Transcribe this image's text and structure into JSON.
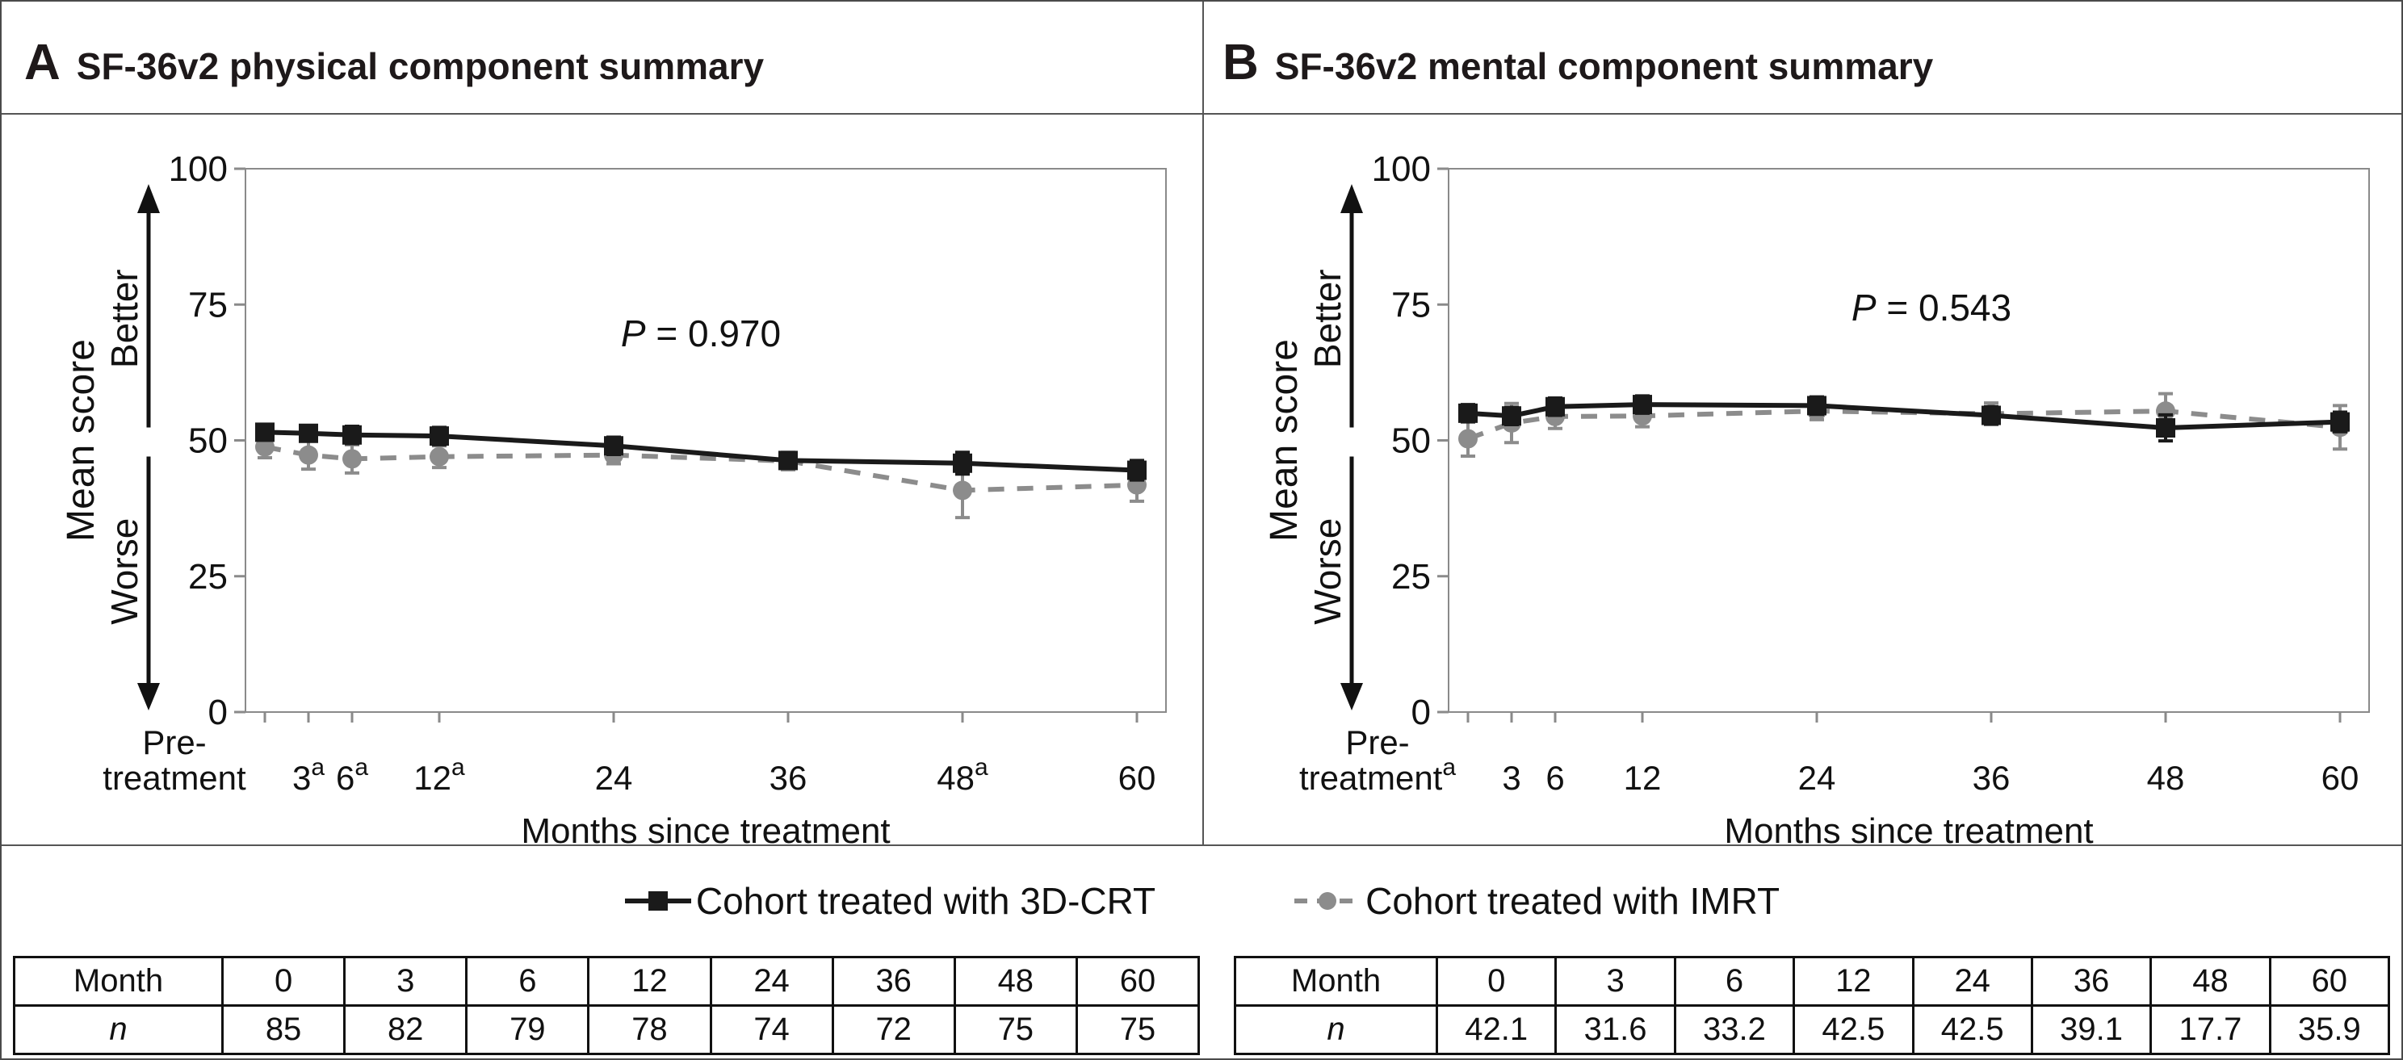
{
  "figure": {
    "panels": [
      {
        "letter": "A",
        "title": "SF-36v2 physical component summary"
      },
      {
        "letter": "B",
        "title": "SF-36v2 mental component summary"
      }
    ],
    "legend": {
      "items": [
        {
          "label": "Cohort treated with 3D-CRT",
          "marker": "solid-black-line-square-marker"
        },
        {
          "label": "Cohort treated with IMRT",
          "marker": "dashed-gray-line-circle-marker"
        }
      ]
    },
    "colors": {
      "crt": "#1a1a1a",
      "imrt": "#8c8c8c",
      "axis": "#8a8a8a",
      "border": "#4a4a4a",
      "text": "#111111"
    }
  },
  "chart_data": [
    {
      "type": "line",
      "panel": "A",
      "title": "SF-36v2 physical component summary",
      "xlabel": "Months since treatment",
      "ylabel": "Mean score",
      "y_direction_labels": {
        "up": "Better",
        "down": "Worse"
      },
      "ylim": [
        0,
        100
      ],
      "yticks": [
        0,
        25,
        50,
        75,
        100
      ],
      "x_months": [
        0,
        3,
        6,
        12,
        24,
        36,
        48,
        60
      ],
      "xtick_labels": [
        {
          "text": "Pre-\ntreatment"
        },
        {
          "text": "3",
          "sup": "a"
        },
        {
          "text": "6",
          "sup": "a"
        },
        {
          "text": "12",
          "sup": "a"
        },
        {
          "text": "24"
        },
        {
          "text": "36"
        },
        {
          "text": "48",
          "sup": "a"
        },
        {
          "text": "60"
        }
      ],
      "annotation": {
        "italic": "P",
        "text": " = 0.970",
        "x": 866,
        "y": 287
      },
      "series": [
        {
          "name": "Cohort treated with 3D-CRT",
          "style": "solid-black-square",
          "values": [
            51.5,
            51.3,
            51.0,
            50.8,
            49.0,
            46.3,
            45.8,
            44.5
          ],
          "errors": [
            1.4,
            1.4,
            1.6,
            1.6,
            1.6,
            1.4,
            2.0,
            1.8
          ]
        },
        {
          "name": "Cohort treated with IMRT",
          "style": "dashed-gray-circle",
          "values": [
            48.8,
            47.3,
            46.6,
            47.0,
            47.3,
            46.2,
            40.8,
            41.8
          ],
          "errors": [
            2.0,
            2.6,
            2.6,
            2.0,
            1.6,
            1.6,
            5.0,
            3.0
          ]
        }
      ],
      "table": {
        "header_label": "Month",
        "row_label": "n",
        "months": [
          0,
          3,
          6,
          12,
          24,
          36,
          48,
          60
        ],
        "values": [
          "85",
          "82",
          "79",
          "78",
          "74",
          "72",
          "75",
          "75"
        ]
      }
    },
    {
      "type": "line",
      "panel": "B",
      "title": "SF-36v2 mental component summary",
      "xlabel": "Months since treatment",
      "ylabel": "Mean score",
      "y_direction_labels": {
        "up": "Better",
        "down": "Worse"
      },
      "ylim": [
        0,
        100
      ],
      "yticks": [
        0,
        25,
        50,
        75,
        100
      ],
      "x_months": [
        0,
        3,
        6,
        12,
        24,
        36,
        48,
        60
      ],
      "xtick_labels": [
        {
          "text": "Pre-\ntreatment",
          "sup": "a"
        },
        {
          "text": "3"
        },
        {
          "text": "6"
        },
        {
          "text": "12"
        },
        {
          "text": "24"
        },
        {
          "text": "36"
        },
        {
          "text": "48"
        },
        {
          "text": "60"
        }
      ],
      "annotation": {
        "italic": "P",
        "text": " = 0.543",
        "x": 900,
        "y": 255
      },
      "series": [
        {
          "name": "Cohort treated with 3D-CRT",
          "style": "solid-black-square",
          "values": [
            55.0,
            54.5,
            56.2,
            56.6,
            56.4,
            54.6,
            52.3,
            53.4
          ],
          "errors": [
            1.6,
            1.6,
            1.6,
            1.6,
            1.6,
            1.6,
            2.4,
            1.8
          ]
        },
        {
          "name": "Cohort treated with IMRT",
          "style": "dashed-gray-circle",
          "values": [
            50.3,
            53.2,
            54.4,
            54.5,
            55.4,
            54.9,
            55.4,
            52.4
          ],
          "errors": [
            3.2,
            3.6,
            2.2,
            2.0,
            1.6,
            2.0,
            3.2,
            4.0
          ]
        }
      ],
      "table": {
        "header_label": "Month",
        "row_label": "n",
        "months": [
          0,
          3,
          6,
          12,
          24,
          36,
          48,
          60
        ],
        "values": [
          "42.1",
          "31.6",
          "33.2",
          "42.5",
          "42.5",
          "39.1",
          "17.7",
          "35.9"
        ]
      }
    }
  ]
}
